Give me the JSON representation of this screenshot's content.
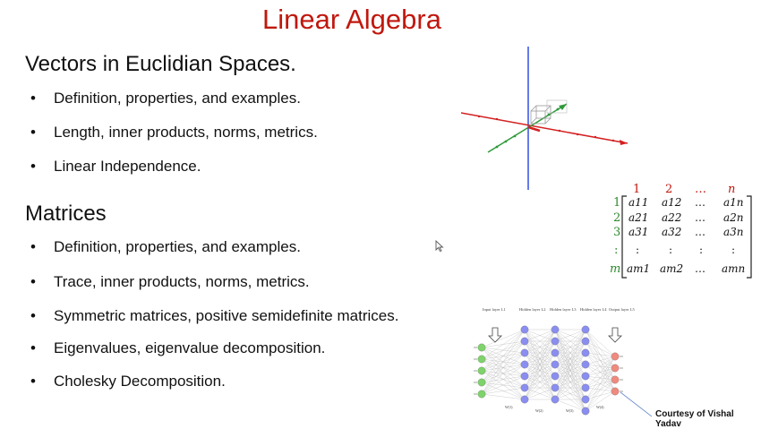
{
  "slide": {
    "title": "Linear Algebra",
    "sections": [
      {
        "heading": "Vectors in Euclidian Spaces.",
        "bullets": [
          "Definition, properties, and examples.",
          "Length, inner products, norms, metrics.",
          "Linear Independence."
        ]
      },
      {
        "heading": "Matrices",
        "bullets": [
          "Definition, properties, and examples.",
          "Trace, inner products, norms, metrics.",
          "Symmetric matrices, positive semidefinite matrices.",
          "Eigenvalues, eigenvalue decomposition.",
          "Cholesky Decomposition."
        ]
      }
    ],
    "bullet_symbol": "•"
  },
  "matrix_figure": {
    "col_headers": [
      "1",
      "2",
      "…",
      "n"
    ],
    "row_headers": [
      "1",
      "2",
      "3",
      ":",
      "m"
    ],
    "rows": [
      [
        "a11",
        "a12",
        "…",
        "a1n"
      ],
      [
        "a21",
        "a22",
        "…",
        "a2n"
      ],
      [
        "a31",
        "a32",
        "…",
        "a3n"
      ],
      [
        ":",
        ":",
        ":",
        ":"
      ],
      [
        "am1",
        "am2",
        "…",
        "amn"
      ]
    ],
    "row_header_color": "#2e8b2e",
    "col_header_color": "#c0180e"
  },
  "nn_figure": {
    "layer_labels": [
      "Input layer L1",
      "Hidden layer L2",
      "Hidden layer L3",
      "Hidden layer L4",
      "Output layer L5"
    ],
    "weight_labels": [
      "W(1)",
      "W(2)",
      "W(3)",
      "W(4)"
    ],
    "colors": {
      "input": "#7ed36a",
      "hidden": "#8a8ef0",
      "output": "#f08a7e"
    }
  },
  "credit": "Courtesy of Vishal Yadav",
  "colors": {
    "title": "#c0180e",
    "axis_red": "#d42020",
    "axis_green": "#2e9a3a",
    "axis_blue": "#3050e0"
  }
}
